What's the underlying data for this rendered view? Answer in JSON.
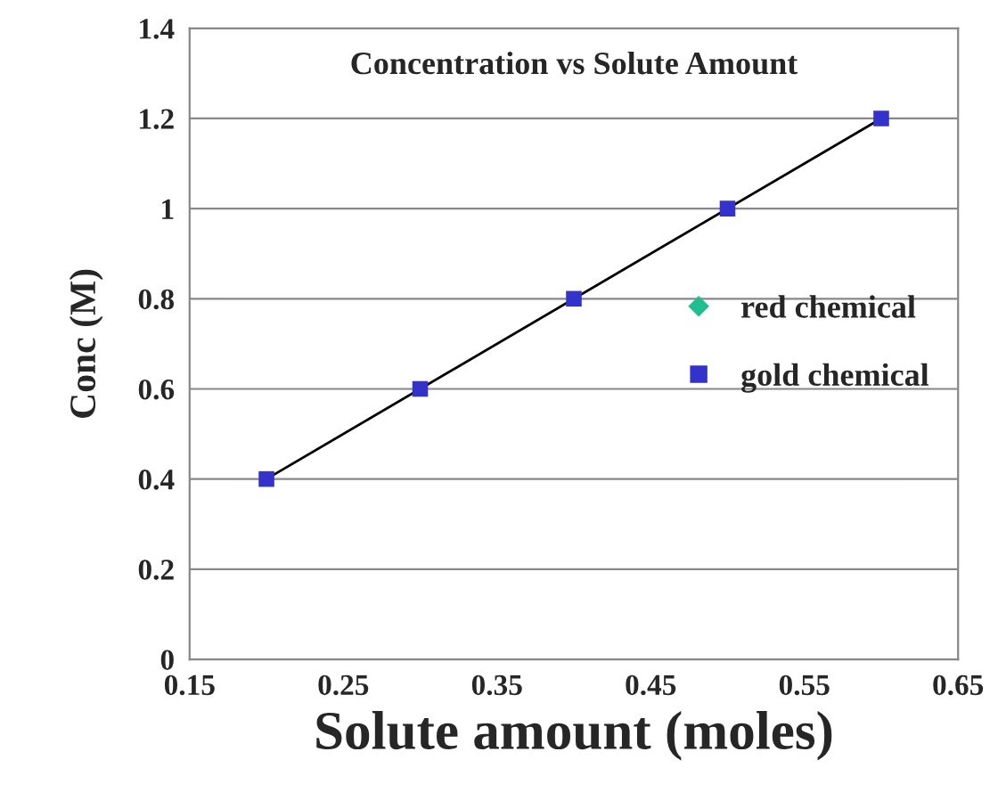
{
  "chart_data": {
    "type": "scatter",
    "title": "Concentration vs Solute Amount",
    "xlabel": "Solute amount (moles)",
    "ylabel": "Conc (M)",
    "x": [
      0.2,
      0.3,
      0.4,
      0.5,
      0.6
    ],
    "series": [
      {
        "name": "red chemical",
        "color": "#1fbf8f",
        "marker": "diamond",
        "values": [
          null,
          null,
          null,
          null,
          null
        ]
      },
      {
        "name": "gold chemical",
        "color": "#3333cc",
        "marker": "square",
        "values": [
          0.4,
          0.6,
          0.8,
          1.0,
          1.2
        ]
      },
      {
        "type": "line",
        "color": "#000000",
        "marker": "none",
        "line_style": "solid",
        "x": [
          0.2,
          0.6
        ],
        "values": [
          0.4,
          1.2
        ]
      }
    ],
    "xlim": [
      0.15,
      0.65
    ],
    "xticks": [
      0.15,
      0.25,
      0.35,
      0.45,
      0.55,
      0.65
    ],
    "ylim": [
      0,
      1.4
    ],
    "yticks": [
      0,
      0.2,
      0.4,
      0.6,
      0.8,
      1,
      1.2,
      1.4
    ],
    "grid": "y",
    "legend": "right"
  }
}
